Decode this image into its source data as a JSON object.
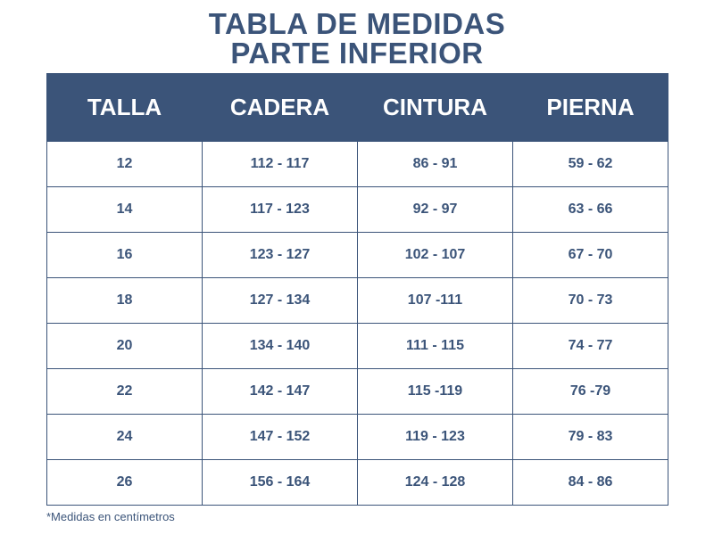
{
  "title": {
    "line1": "TABLA DE MEDIDAS",
    "line2": "PARTE INFERIOR"
  },
  "table": {
    "headers": [
      "TALLA",
      "CADERA",
      "CINTURA",
      "PIERNA"
    ],
    "rows": [
      [
        "12",
        "112 - 117",
        "86 - 91",
        "59 - 62"
      ],
      [
        "14",
        "117 - 123",
        "92 - 97",
        "63 - 66"
      ],
      [
        "16",
        "123 - 127",
        "102 - 107",
        "67 - 70"
      ],
      [
        "18",
        "127 - 134",
        "107 -111",
        "70 - 73"
      ],
      [
        "20",
        "134 - 140",
        "111 - 115",
        "74 - 77"
      ],
      [
        "22",
        "142 - 147",
        "115 -119",
        "76 -79"
      ],
      [
        "24",
        "147 - 152",
        "119 - 123",
        "79 - 83"
      ],
      [
        "26",
        "156 - 164",
        "124 - 128",
        "84 - 86"
      ]
    ]
  },
  "footnote": "*Medidas en centímetros",
  "colors": {
    "primary": "#3b5479",
    "background": "#ffffff",
    "header_text": "#ffffff"
  }
}
